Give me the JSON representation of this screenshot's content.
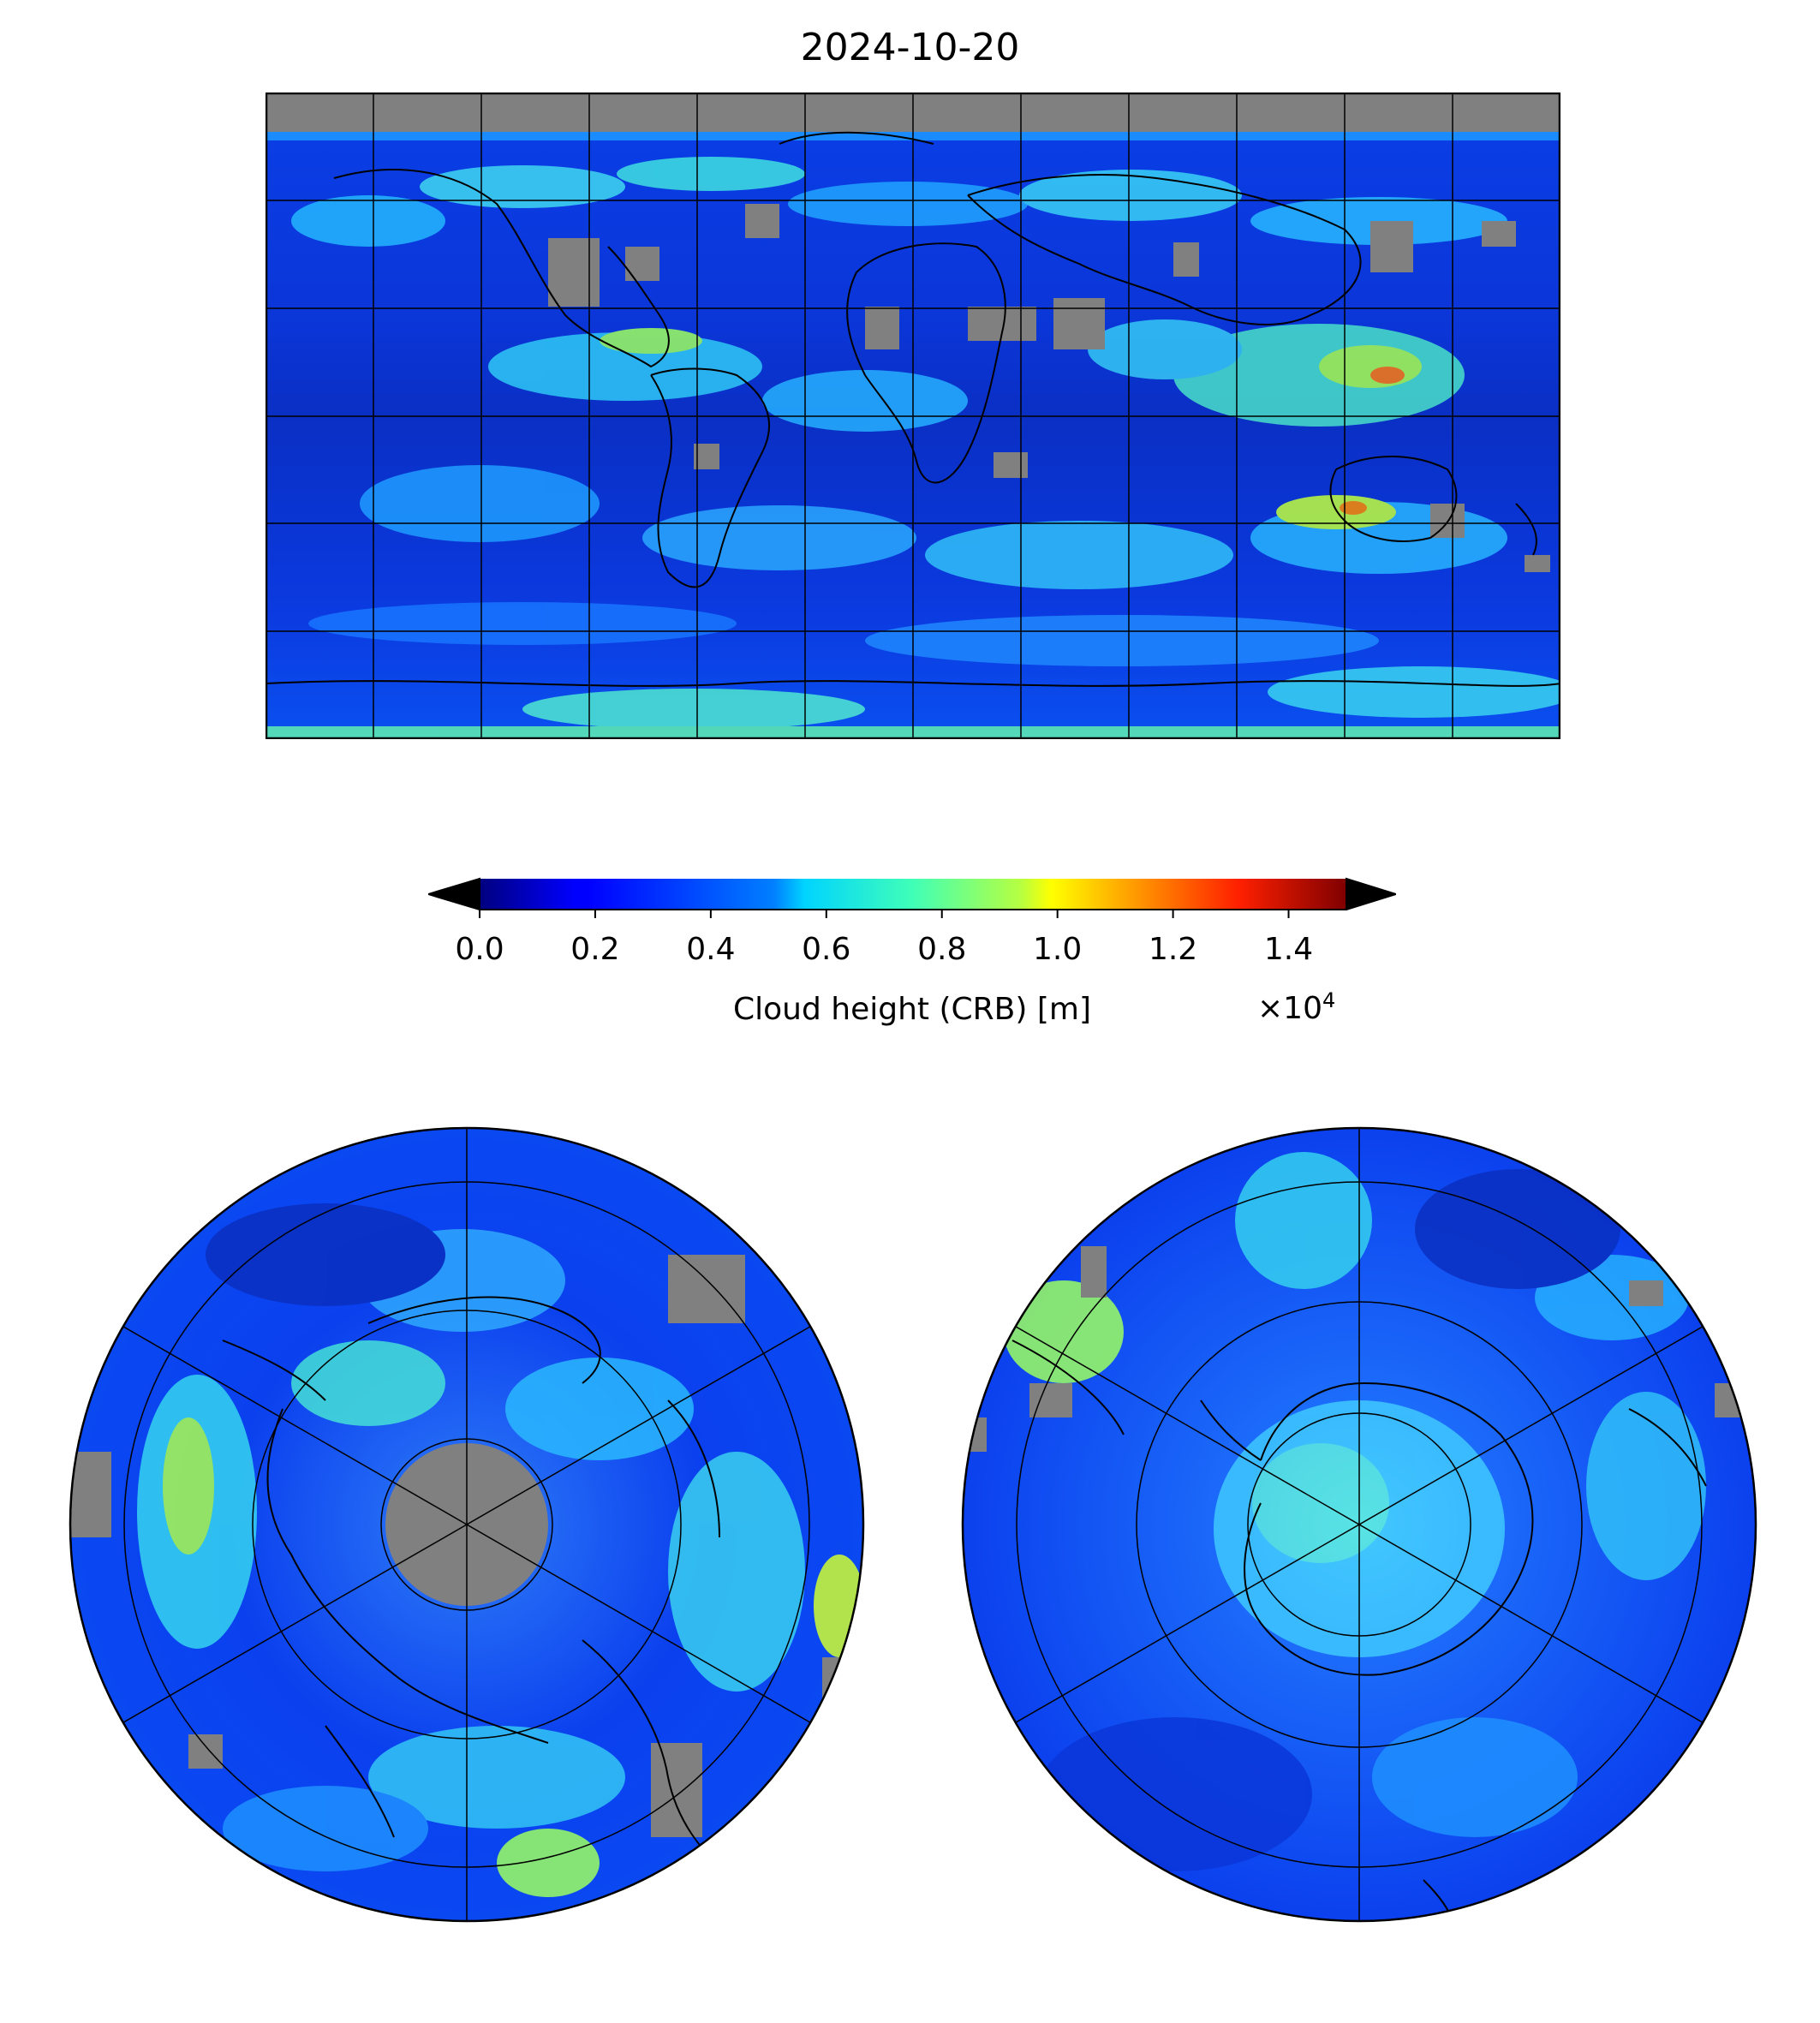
{
  "title": "2024-10-20",
  "colorbar": {
    "label": "Cloud height (CRB) [m]",
    "multiplier": "×10",
    "multiplier_exp": "4",
    "ticks": [
      "0.0",
      "0.2",
      "0.4",
      "0.6",
      "0.8",
      "1.0",
      "1.2",
      "1.4"
    ],
    "tick_values": [
      0.0,
      0.2,
      0.4,
      0.6,
      0.8,
      1.0,
      1.2,
      1.4
    ],
    "range": [
      0.0,
      1.5
    ],
    "extend": "both",
    "under_color": "#c8c8c8",
    "over_color": "#404040",
    "colormap": "jet"
  },
  "maps": {
    "main": {
      "projection": "equirectangular",
      "grid_lon_step_deg": 30,
      "grid_lat_step_deg": 30,
      "missing_color": "#808080"
    },
    "north": {
      "projection": "north-polar-stereographic",
      "missing_color": "#808080"
    },
    "south": {
      "projection": "south-polar-stereographic",
      "missing_color": "#808080"
    }
  }
}
